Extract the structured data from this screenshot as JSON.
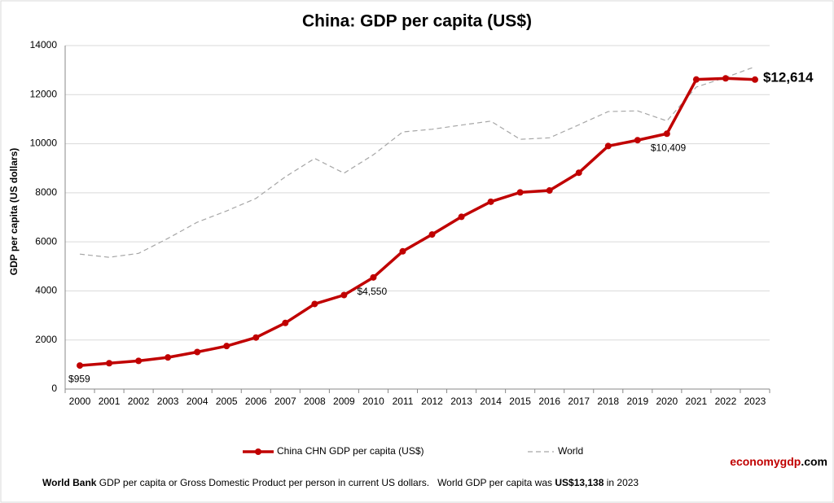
{
  "chart_data": {
    "type": "line",
    "title": "China: GDP per capita (US$)",
    "y_label": "GDP per capita (US dollars)",
    "categories": [
      "2000",
      "2001",
      "2002",
      "2003",
      "2004",
      "2005",
      "2006",
      "2007",
      "2008",
      "2009",
      "2010",
      "2011",
      "2012",
      "2013",
      "2014",
      "2015",
      "2016",
      "2017",
      "2018",
      "2019",
      "2020",
      "2021",
      "2022",
      "2023"
    ],
    "series": [
      {
        "name": "China CHN GDP per capita (US$)",
        "color": "#c00000",
        "values": [
          959,
          1053,
          1149,
          1289,
          1509,
          1753,
          2099,
          2694,
          3468,
          3832,
          4550,
          5614,
          6301,
          7020,
          7636,
          8016,
          8094,
          8817,
          9905,
          10144,
          10409,
          12618,
          12663,
          12614
        ],
        "value_labels": [
          "$959",
          null,
          null,
          null,
          null,
          null,
          null,
          null,
          null,
          null,
          "$4,550",
          null,
          null,
          null,
          null,
          null,
          null,
          null,
          null,
          null,
          "$10,409",
          null,
          null,
          "$12,614"
        ]
      },
      {
        "name": "World",
        "color": "#a6a6a6",
        "values": [
          5500,
          5370,
          5530,
          6140,
          6800,
          7260,
          7770,
          8650,
          9400,
          8800,
          9550,
          10480,
          10590,
          10760,
          10920,
          10180,
          10240,
          10770,
          11310,
          11340,
          10930,
          12310,
          12700,
          13138
        ]
      }
    ],
    "ylim": [
      0,
      14000
    ],
    "yticks": [
      0,
      2000,
      4000,
      6000,
      8000,
      10000,
      12000,
      14000
    ],
    "grid": true,
    "footer": [
      "World Bank",
      " GDP per capita or Gross Domestic Product per person in current US dollars.   World GDP per capita was ",
      "US$13,138",
      " in 2023"
    ],
    "brand": [
      "economygdp",
      ".com"
    ]
  }
}
